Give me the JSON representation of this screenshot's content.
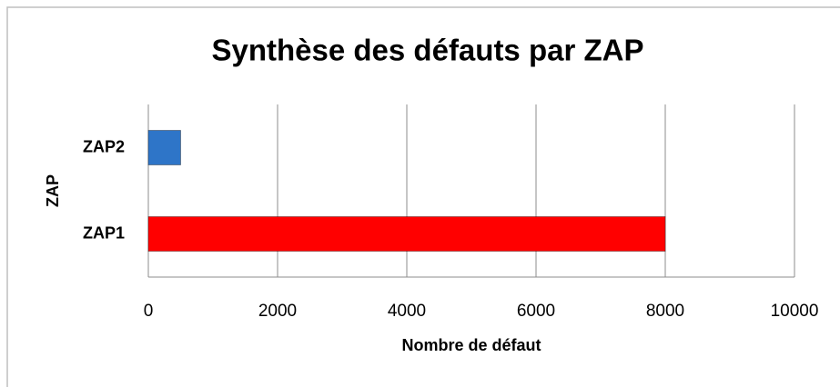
{
  "chart_data": {
    "type": "bar",
    "orientation": "horizontal",
    "title": "Synthèse des défauts par ZAP",
    "xlabel": "Nombre de défaut",
    "ylabel": "ZAP",
    "categories": [
      "ZAP1",
      "ZAP2"
    ],
    "values": [
      8000,
      500
    ],
    "colors": [
      "#ff0000",
      "#2e75c8"
    ],
    "xlim": [
      0,
      10000
    ],
    "xticks": [
      0,
      2000,
      4000,
      6000,
      8000,
      10000
    ],
    "grid": true
  }
}
